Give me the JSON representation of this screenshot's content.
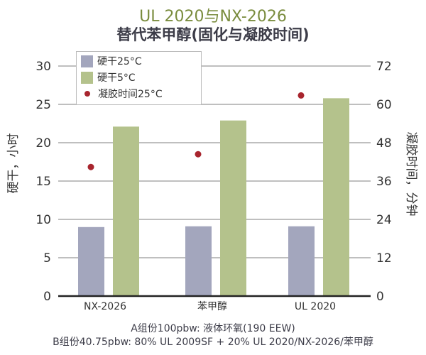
{
  "title": "UL 2020与NX-2026",
  "subtitle": "替代苯甲醇(固化与凝胶时间)",
  "footnotes": [
    "A组份100pbw: 液体环氧(190 EEW)",
    "B组份40.75pbw: 80% UL 2009SF + 20% UL 2020/NX-2026/苯甲醇"
  ],
  "chart_data": {
    "type": "bar",
    "categories": [
      "NX-2026",
      "苯甲醇",
      "UL 2020"
    ],
    "series": [
      {
        "name": "硬干25°C",
        "type": "bar",
        "axis": "left",
        "color": "#a3a6bd",
        "values": [
          9.0,
          9.1,
          9.1
        ]
      },
      {
        "name": "硬干5°C",
        "type": "bar",
        "axis": "left",
        "color": "#b4c28c",
        "values": [
          22.1,
          22.9,
          25.8
        ]
      },
      {
        "name": "凝胶时间25°C",
        "type": "scatter",
        "axis": "right",
        "color": "#a8252e",
        "values": [
          40.4,
          44.4,
          62.8
        ]
      }
    ],
    "ylabel": "硬干，小时",
    "y2label": "凝胶时间，分钟",
    "ylim": [
      0,
      30
    ],
    "y2lim": [
      0,
      72
    ],
    "yticks": [
      0,
      5,
      10,
      15,
      20,
      25,
      30
    ],
    "y2ticks": [
      0,
      12,
      24,
      36,
      48,
      60,
      72
    ],
    "grid": true,
    "legend": "top-left"
  }
}
